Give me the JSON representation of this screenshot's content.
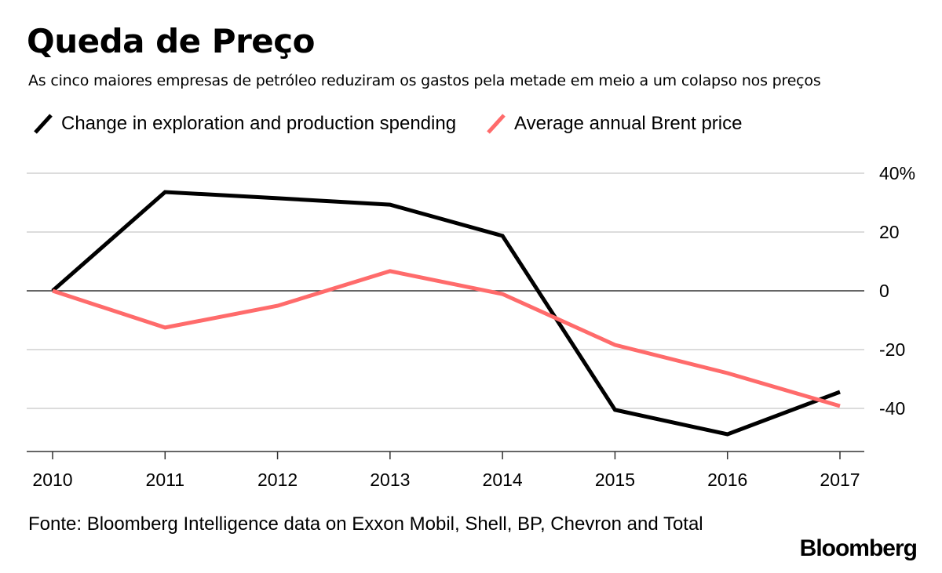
{
  "header": {
    "title": "Queda de Preço",
    "subtitle": "As cinco maiores empresas de petróleo reduziram os gastos pela metade em meio a um colapso nos preços"
  },
  "legend": [
    {
      "label": "Change in exploration and production spending",
      "color": "#000000"
    },
    {
      "label": "Average annual Brent price",
      "color": "#ff6b6b"
    }
  ],
  "footer": {
    "source": "Fonte: Bloomberg Intelligence data on Exxon Mobil, Shell, BP, Chevron and Total",
    "brand": "Bloomberg"
  },
  "chart_data": {
    "type": "line",
    "title": "Queda de Preço",
    "subtitle": "As cinco maiores empresas de petróleo reduziram os gastos pela metade em meio a um colapso nos preços",
    "xlabel": "",
    "ylabel": "",
    "x": [
      "2010",
      "2011",
      "2012",
      "2013",
      "2014",
      "2015",
      "2016",
      "2017"
    ],
    "series": [
      {
        "name": "Change in exploration and production spending",
        "color": "#000000",
        "values": [
          0,
          33.6,
          31.5,
          29.3,
          18.7,
          -40.5,
          -48.8,
          -34.4
        ]
      },
      {
        "name": "Average annual Brent price",
        "color": "#ff6b6b",
        "values": [
          0,
          -12.5,
          -5.1,
          6.7,
          -1.1,
          -18.4,
          -28.0,
          -39.2
        ]
      }
    ],
    "ylim": [
      -55,
      40
    ],
    "yticks": [
      40,
      20,
      0,
      -20,
      -40
    ],
    "ytick_labels": [
      "40%",
      "20",
      "0",
      "-20",
      "-40"
    ],
    "y_axis_position": "right",
    "grid": true,
    "legend_position": "top-left"
  }
}
